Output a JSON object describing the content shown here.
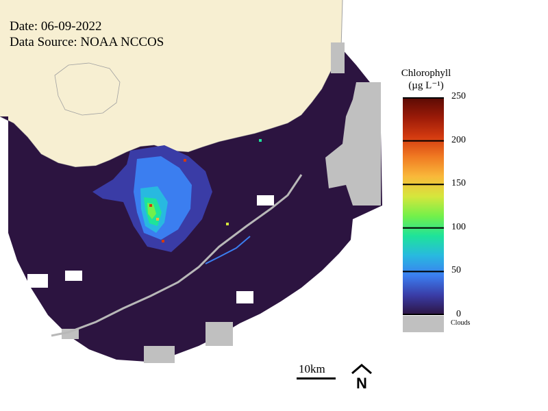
{
  "map": {
    "date": "Date: 06-09-2022",
    "source": "Data Source: NOAA NCCOS",
    "colors": {
      "land": "#f7efd2",
      "water": "#2c1440",
      "clouds": "#c0c0c0",
      "coastline": "#a0a0a0"
    }
  },
  "legend": {
    "title_line1": "Chlorophyll",
    "title_line2": "(µg L⁻¹)",
    "ticks": [
      "250",
      "200",
      "150",
      "100",
      "50",
      "0"
    ],
    "tick_values": [
      250,
      200,
      150,
      100,
      50,
      0
    ],
    "clouds_label": "Clouds",
    "colormap": [
      "#2c1440",
      "#3a3ca6",
      "#3b7ef0",
      "#28b9e0",
      "#1ee39a",
      "#73f04a",
      "#d6e63c",
      "#f9b83a",
      "#f07a22",
      "#d33a10",
      "#9a1a08",
      "#5a0a04"
    ]
  },
  "scalebar": {
    "label": "10km"
  },
  "north_arrow": {
    "label": "N"
  }
}
